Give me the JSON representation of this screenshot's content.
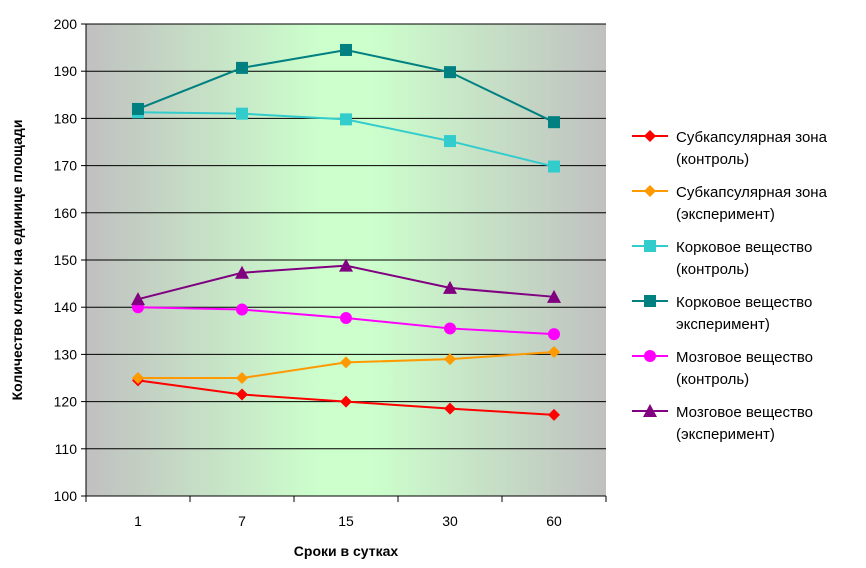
{
  "chart_data": {
    "type": "line",
    "title": "",
    "xlabel": "Сроки в сутках",
    "ylabel": "Количество клеток на единице площади",
    "categories": [
      "1",
      "7",
      "15",
      "30",
      "60"
    ],
    "ylim": [
      100,
      200
    ],
    "yticks": [
      100,
      110,
      120,
      130,
      140,
      150,
      160,
      170,
      180,
      190,
      200
    ],
    "grid": true,
    "legend_position": "right",
    "series": [
      {
        "name_lines": [
          "Субкапсулярная зона",
          "(контроль)"
        ],
        "values": [
          124.5,
          121.5,
          120,
          118.5,
          117.2
        ],
        "color": "#ff0000",
        "marker": "diamond"
      },
      {
        "name_lines": [
          "Субкапсулярная зона",
          "(эксперимент)"
        ],
        "values": [
          125,
          125,
          128.3,
          129,
          130.5
        ],
        "color": "#ff9900",
        "marker": "diamond"
      },
      {
        "name_lines": [
          "Корковое вещество",
          "(контроль)"
        ],
        "values": [
          181.3,
          181,
          179.8,
          175.2,
          169.8
        ],
        "color": "#33cccc",
        "marker": "square"
      },
      {
        "name_lines": [
          "Корковое вещество",
          "эксперимент)"
        ],
        "values": [
          182,
          190.7,
          194.5,
          189.8,
          179.2
        ],
        "color": "#008080",
        "marker": "square"
      },
      {
        "name_lines": [
          "Мозговое вещество",
          "(контроль)"
        ],
        "values": [
          140,
          139.5,
          137.7,
          135.5,
          134.3
        ],
        "color": "#ff00ff",
        "marker": "circle"
      },
      {
        "name_lines": [
          "Мозговое вещество",
          "(эксперимент)"
        ],
        "values": [
          141.7,
          147.3,
          148.8,
          144.1,
          142.2
        ],
        "color": "#800080",
        "marker": "triangle"
      }
    ]
  }
}
